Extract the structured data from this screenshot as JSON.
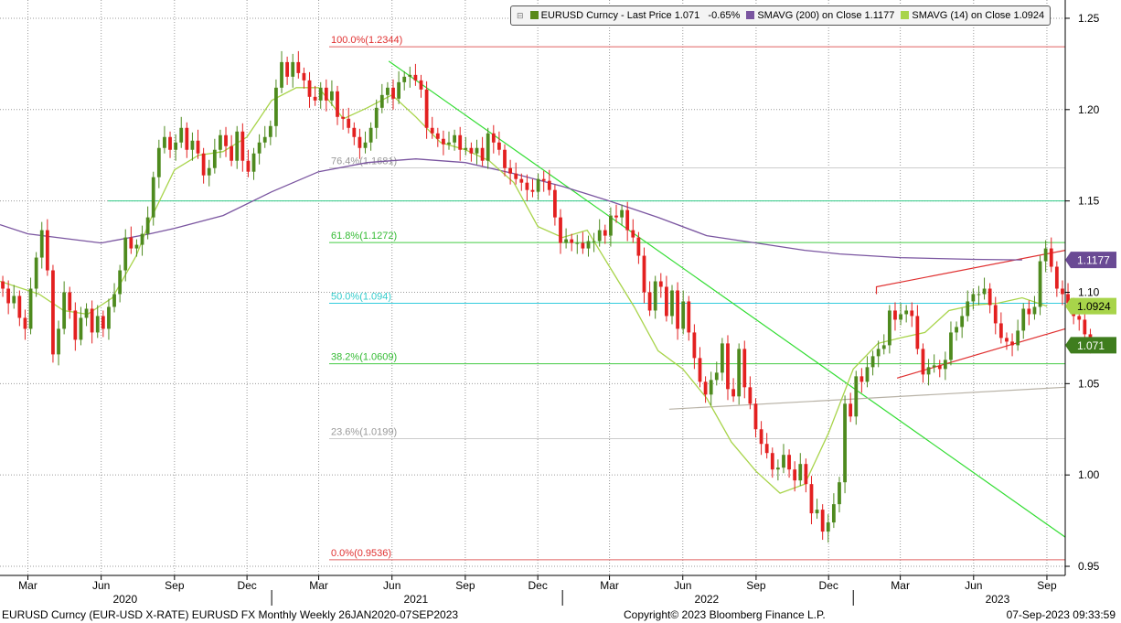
{
  "chart_data": {
    "type": "candlestick",
    "title": "",
    "xlabel": "",
    "ylabel": "",
    "ylim": [
      0.945,
      1.26
    ],
    "xlim": [
      "2020-01-26",
      "2023-09-24"
    ],
    "y_ticks": [
      "0.95",
      "1.00",
      "1.05",
      "1.10",
      "1.15",
      "1.20",
      "1.25"
    ],
    "x_month_ticks": [
      {
        "label": "Mar",
        "date": "2020-03-01"
      },
      {
        "label": "Jun",
        "date": "2020-06-01"
      },
      {
        "label": "Sep",
        "date": "2020-09-01"
      },
      {
        "label": "Dec",
        "date": "2020-12-01"
      },
      {
        "label": "Mar",
        "date": "2021-03-01"
      },
      {
        "label": "Jun",
        "date": "2021-06-01"
      },
      {
        "label": "Sep",
        "date": "2021-09-01"
      },
      {
        "label": "Dec",
        "date": "2021-12-01"
      },
      {
        "label": "Mar",
        "date": "2022-03-01"
      },
      {
        "label": "Jun",
        "date": "2022-06-01"
      },
      {
        "label": "Sep",
        "date": "2022-09-01"
      },
      {
        "label": "Dec",
        "date": "2022-12-01"
      },
      {
        "label": "Mar",
        "date": "2023-03-01"
      },
      {
        "label": "Jun",
        "date": "2023-06-01"
      },
      {
        "label": "Sep",
        "date": "2023-09-01"
      }
    ],
    "x_year_ticks": [
      {
        "label": "2020",
        "date": "2020-07-01"
      },
      {
        "label": "2021",
        "date": "2021-07-01"
      },
      {
        "label": "2022",
        "date": "2022-07-01"
      },
      {
        "label": "2023",
        "date": "2023-07-01"
      }
    ],
    "year_separators": [
      "2021-01-01",
      "2022-01-01",
      "2023-01-01"
    ],
    "grid": true,
    "legend": {
      "position": "top",
      "entries": [
        {
          "name": "EURUSD Curncy - Last Price",
          "value": "1.071",
          "change": "-0.65%",
          "color": "#5a8a1a"
        },
        {
          "name": "SMAVG (200)  on Close",
          "value": "1.1177",
          "color": "#7a55a0"
        },
        {
          "name": "SMAVG (14)  on Close",
          "value": "1.0924",
          "color": "#a8d44a"
        }
      ]
    },
    "series": [
      {
        "name": "EURUSD Curncy - Last Price",
        "type": "candlestick",
        "up_color": "#4e8a1e",
        "down_color": "#e32020",
        "start_date": "2020-01-26",
        "interval_days": 7,
        "start_close": 1.102,
        "closes": [
          1.102,
          1.094,
          1.098,
          1.086,
          1.08,
          1.102,
          1.119,
          1.134,
          1.112,
          1.066,
          1.08,
          1.1,
          1.09,
          1.074,
          1.086,
          1.091,
          1.078,
          1.087,
          1.08,
          1.092,
          1.099,
          1.112,
          1.13,
          1.124,
          1.126,
          1.132,
          1.141,
          1.163,
          1.179,
          1.185,
          1.178,
          1.182,
          1.19,
          1.178,
          1.183,
          1.176,
          1.164,
          1.168,
          1.178,
          1.186,
          1.18,
          1.172,
          1.188,
          1.172,
          1.166,
          1.176,
          1.182,
          1.185,
          1.191,
          1.212,
          1.226,
          1.218,
          1.226,
          1.22,
          1.216,
          1.207,
          1.205,
          1.212,
          1.205,
          1.21,
          1.196,
          1.195,
          1.19,
          1.185,
          1.179,
          1.182,
          1.19,
          1.201,
          1.208,
          1.212,
          1.206,
          1.215,
          1.218,
          1.219,
          1.216,
          1.211,
          1.19,
          1.187,
          1.184,
          1.181,
          1.182,
          1.186,
          1.178,
          1.179,
          1.176,
          1.179,
          1.172,
          1.187,
          1.182,
          1.178,
          1.168,
          1.165,
          1.162,
          1.16,
          1.156,
          1.155,
          1.162,
          1.161,
          1.156,
          1.141,
          1.127,
          1.129,
          1.127,
          1.127,
          1.124,
          1.128,
          1.128,
          1.134,
          1.131,
          1.142,
          1.141,
          1.145,
          1.134,
          1.13,
          1.12,
          1.1,
          1.09,
          1.106,
          1.103,
          1.087,
          1.101,
          1.08,
          1.095,
          1.078,
          1.064,
          1.051,
          1.044,
          1.052,
          1.056,
          1.072,
          1.047,
          1.043,
          1.069,
          1.048,
          1.039,
          1.025,
          1.017,
          1.012,
          1.003,
          1.004,
          1.011,
          1.003,
          0.997,
          1.006,
          0.995,
          0.979,
          0.981,
          0.969,
          0.974,
          0.984,
          0.996,
          1.039,
          1.032,
          1.054,
          1.051,
          1.059,
          1.065,
          1.069,
          1.071,
          1.09,
          1.085,
          1.088,
          1.09,
          1.087,
          1.069,
          1.055,
          1.059,
          1.06,
          1.058,
          1.063,
          1.078,
          1.081,
          1.087,
          1.095,
          1.099,
          1.099,
          1.102,
          1.093,
          1.083,
          1.075,
          1.073,
          1.071,
          1.079,
          1.091,
          1.088,
          1.092,
          1.117,
          1.124,
          1.114,
          1.102,
          1.099,
          1.094,
          1.087,
          1.085,
          1.077,
          1.071
        ]
      },
      {
        "name": "SMAVG (200)  on Close",
        "type": "line",
        "color": "#7a55a0",
        "points": [
          [
            "2020-01-26",
            1.137
          ],
          [
            "2020-03-01",
            1.132
          ],
          [
            "2020-06-01",
            1.127
          ],
          [
            "2020-08-01",
            1.132
          ],
          [
            "2020-09-01",
            1.135
          ],
          [
            "2020-11-01",
            1.142
          ],
          [
            "2021-01-01",
            1.155
          ],
          [
            "2021-03-01",
            1.166
          ],
          [
            "2021-05-01",
            1.171
          ],
          [
            "2021-07-01",
            1.173
          ],
          [
            "2021-09-01",
            1.171
          ],
          [
            "2021-11-01",
            1.165
          ],
          [
            "2022-01-01",
            1.158
          ],
          [
            "2022-03-01",
            1.15
          ],
          [
            "2022-05-01",
            1.141
          ],
          [
            "2022-07-01",
            1.131
          ],
          [
            "2022-09-01",
            1.127
          ],
          [
            "2022-11-01",
            1.123
          ],
          [
            "2022-12-15",
            1.121
          ],
          [
            "2023-03-01",
            1.119
          ],
          [
            "2023-06-01",
            1.118
          ],
          [
            "2023-08-01",
            1.1177
          ]
        ]
      },
      {
        "name": "SMAVG (14)  on Close",
        "type": "line",
        "color": "#a8d44a",
        "points": [
          [
            "2020-01-26",
            1.106
          ],
          [
            "2020-03-15",
            1.099
          ],
          [
            "2020-04-15",
            1.09
          ],
          [
            "2020-05-15",
            1.088
          ],
          [
            "2020-06-15",
            1.097
          ],
          [
            "2020-07-15",
            1.12
          ],
          [
            "2020-08-01",
            1.139
          ],
          [
            "2020-09-01",
            1.167
          ],
          [
            "2020-10-01",
            1.175
          ],
          [
            "2020-11-01",
            1.177
          ],
          [
            "2020-12-01",
            1.185
          ],
          [
            "2021-01-01",
            1.205
          ],
          [
            "2021-02-01",
            1.212
          ],
          [
            "2021-03-01",
            1.212
          ],
          [
            "2021-04-01",
            1.195
          ],
          [
            "2021-05-01",
            1.201
          ],
          [
            "2021-06-01",
            1.208
          ],
          [
            "2021-07-01",
            1.196
          ],
          [
            "2021-08-01",
            1.182
          ],
          [
            "2021-09-01",
            1.178
          ],
          [
            "2021-10-01",
            1.172
          ],
          [
            "2021-11-01",
            1.16
          ],
          [
            "2021-12-01",
            1.136
          ],
          [
            "2022-01-01",
            1.13
          ],
          [
            "2022-02-01",
            1.134
          ],
          [
            "2022-03-01",
            1.114
          ],
          [
            "2022-04-01",
            1.092
          ],
          [
            "2022-05-01",
            1.068
          ],
          [
            "2022-06-01",
            1.058
          ],
          [
            "2022-07-01",
            1.042
          ],
          [
            "2022-08-01",
            1.018
          ],
          [
            "2022-09-01",
            1.002
          ],
          [
            "2022-10-01",
            0.99
          ],
          [
            "2022-11-01",
            0.995
          ],
          [
            "2022-12-01",
            1.023
          ],
          [
            "2023-01-01",
            1.058
          ],
          [
            "2023-02-01",
            1.072
          ],
          [
            "2023-03-01",
            1.075
          ],
          [
            "2023-04-01",
            1.078
          ],
          [
            "2023-05-01",
            1.09
          ],
          [
            "2023-06-01",
            1.093
          ],
          [
            "2023-07-01",
            1.094
          ],
          [
            "2023-08-01",
            1.097
          ],
          [
            "2023-09-01",
            1.0924
          ]
        ]
      }
    ],
    "trendlines": [
      {
        "color": "#33dd33",
        "points": [
          [
            "2021-05-28",
            1.2265
          ],
          [
            "2023-09-24",
            0.966
          ]
        ]
      },
      {
        "color": "#e03030",
        "points": [
          [
            "2023-01-30",
            1.099
          ],
          [
            "2023-01-30",
            1.103
          ],
          [
            "2023-09-24",
            1.123
          ]
        ]
      },
      {
        "color": "#e03030",
        "points": [
          [
            "2023-02-25",
            1.053
          ],
          [
            "2023-09-24",
            1.08
          ]
        ]
      },
      {
        "color": "#b8b2a6",
        "points": [
          [
            "2022-05-15",
            1.036
          ],
          [
            "2023-09-24",
            1.048
          ]
        ]
      }
    ],
    "horizontal_lines": [
      {
        "y": 1.2344,
        "color": "#e06060",
        "label": "100.0%(1.2344)",
        "label_color": "#e03030"
      },
      {
        "y": 1.1681,
        "color": "#cccccc",
        "label": "76.4%(1.1681)",
        "label_color": "#999999"
      },
      {
        "y": 1.15,
        "color": "#33cc88",
        "label": "",
        "label_color": ""
      },
      {
        "y": 1.1272,
        "color": "#44cc44",
        "label": "61.8%(1.1272)",
        "label_color": "#33bb33"
      },
      {
        "y": 1.094,
        "color": "#33ccdd",
        "label": "50.0%(1.094)",
        "label_color": "#33cccc"
      },
      {
        "y": 1.0609,
        "color": "#44cc44",
        "label": "38.2%(1.0609)",
        "label_color": "#33bb33"
      },
      {
        "y": 1.0199,
        "color": "#cccccc",
        "label": "23.6%(1.0199)",
        "label_color": "#999999"
      },
      {
        "y": 0.9536,
        "color": "#e06060",
        "label": "0.0%(0.9536)",
        "label_color": "#e03030"
      }
    ],
    "price_badges": [
      {
        "value": "1.1177",
        "y": 1.1177,
        "color": "#6a4a94",
        "text_color": "#ffffff"
      },
      {
        "value": "1.0924",
        "y": 1.0924,
        "color": "#a8d44a",
        "text_color": "#000000"
      },
      {
        "value": "1.071",
        "y": 1.071,
        "color": "#3f7d1e",
        "text_color": "#ffffff"
      }
    ]
  },
  "footer": {
    "left": "EURUSD Curncy (EUR-USD X-RATE) EURUSD FX Monthly  Weekly 26JAN2020-07SEP2023",
    "center": "Copyright© 2023 Bloomberg Finance L.P.",
    "right": "07-Sep-2023 09:33:59"
  }
}
